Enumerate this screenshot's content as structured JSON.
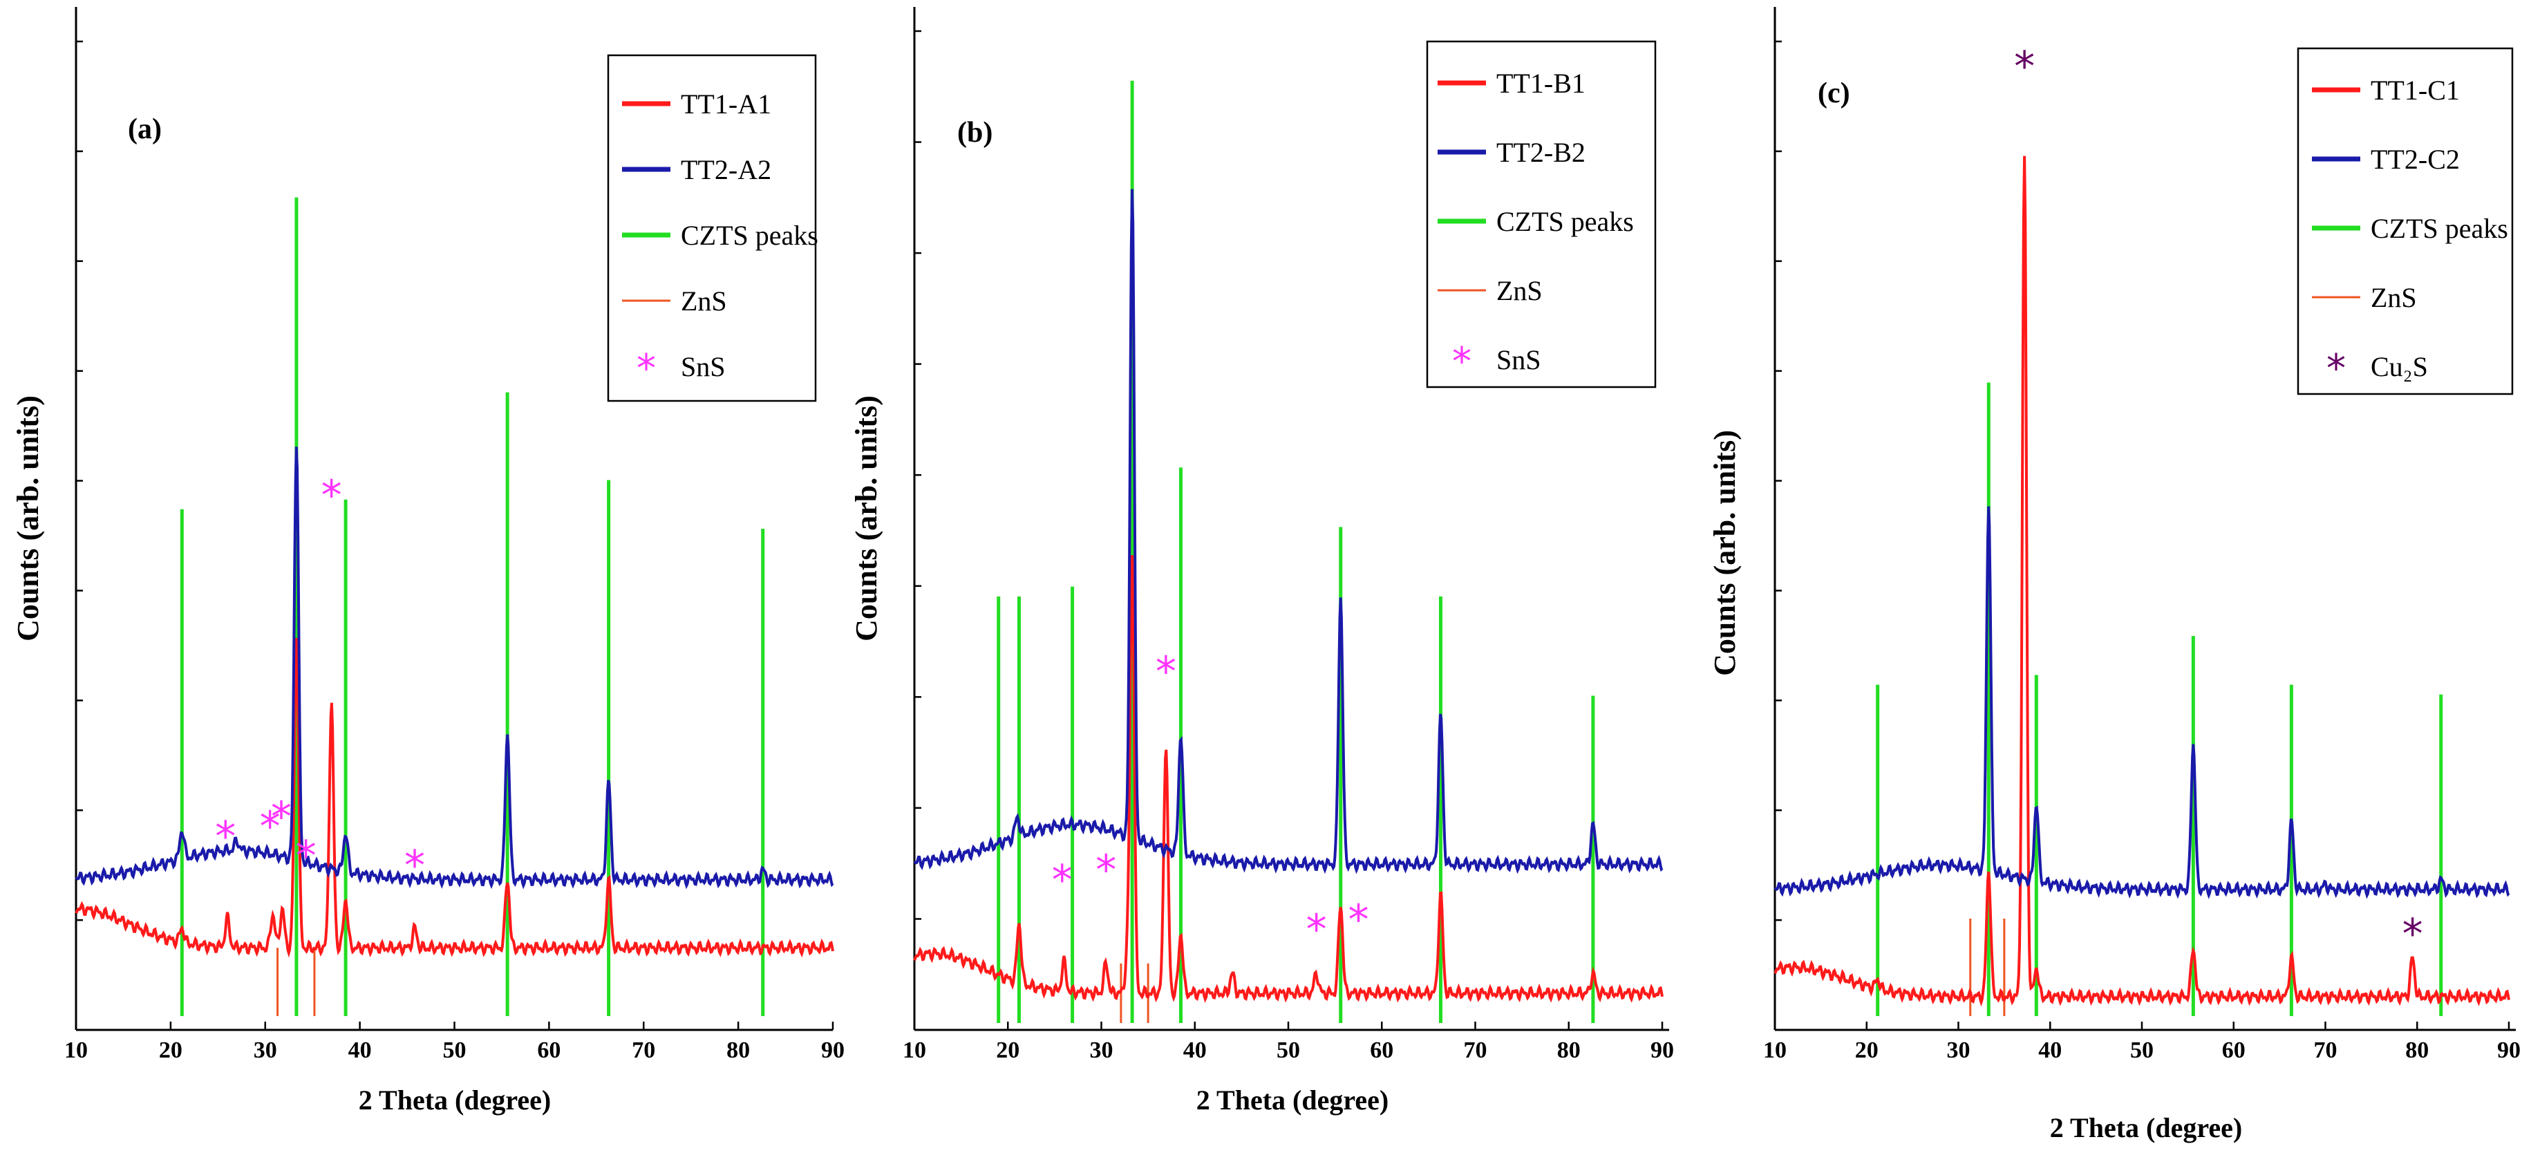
{
  "figure": {
    "xlabel": "2 Theta (degree)",
    "ylabel": "Counts (arb. units)"
  },
  "chart_data": [
    {
      "type": "line",
      "panel_label": "(a)",
      "title": "",
      "xlabel": "2 Theta (degree)",
      "ylabel": "Counts (arb. units)",
      "xlim": [
        10,
        90
      ],
      "ylim": [
        0,
        100
      ],
      "x_ticks": [
        "10",
        "20",
        "30",
        "40",
        "50",
        "60",
        "70",
        "80",
        "90"
      ],
      "legend": [
        {
          "label": "TT1-A1",
          "color": "#ff1a1a",
          "kind": "line"
        },
        {
          "label": "TT2-A2",
          "color": "#1a1aaa",
          "kind": "line"
        },
        {
          "label": "CZTS peaks",
          "color": "#22dd22",
          "kind": "line"
        },
        {
          "label": "ZnS",
          "color": "#ee5522",
          "kind": "line"
        },
        {
          "label": "SnS",
          "color": "#ff33ff",
          "kind": "star"
        }
      ],
      "series": [
        {
          "name": "TT1-A1",
          "color": "#ff1a1a",
          "baseline": 7,
          "hump": {
            "center": 10,
            "height": 4,
            "width": 8
          },
          "peaks": [
            [
              21.2,
              1.5
            ],
            [
              26.0,
              3
            ],
            [
              30.8,
              3.5
            ],
            [
              31.8,
              4
            ],
            [
              33.3,
              32
            ],
            [
              37.0,
              25
            ],
            [
              38.5,
              5
            ],
            [
              45.8,
              2
            ],
            [
              55.6,
              7
            ],
            [
              66.3,
              7
            ]
          ]
        },
        {
          "name": "TT2-A2",
          "color": "#1a1aaa",
          "baseline": 14,
          "hump": {
            "center": 27,
            "height": 3,
            "width": 10
          },
          "peaks": [
            [
              21.2,
              3
            ],
            [
              27.0,
              1
            ],
            [
              33.3,
              43
            ],
            [
              38.5,
              4
            ],
            [
              55.6,
              15
            ],
            [
              66.3,
              10
            ],
            [
              82.6,
              1
            ]
          ]
        }
      ],
      "reference_peaks": [
        {
          "name": "CZTS peaks",
          "color": "#22dd22",
          "positions": [
            21.2,
            33.3,
            38.5,
            55.6,
            66.3,
            82.6
          ],
          "heights": [
            52,
            84,
            53,
            64,
            55,
            50
          ]
        },
        {
          "name": "ZnS",
          "color": "#ee5522",
          "positions": [
            31.3,
            35.2
          ],
          "heights": [
            7,
            7
          ]
        }
      ],
      "markers": [
        {
          "name": "SnS",
          "symbol": "*",
          "color": "#ff33ff",
          "positions": [
            [
              25.8,
              17
            ],
            [
              30.5,
              18
            ],
            [
              31.7,
              19
            ],
            [
              34.3,
              15
            ],
            [
              37.0,
              52
            ],
            [
              45.8,
              14
            ]
          ]
        }
      ]
    },
    {
      "type": "line",
      "panel_label": "(b)",
      "title": "",
      "xlabel": "2 Theta (degree)",
      "ylabel": "Counts (arb. units)",
      "xlim": [
        10,
        90
      ],
      "ylim": [
        0,
        100
      ],
      "x_ticks": [
        "10",
        "20",
        "30",
        "40",
        "50",
        "60",
        "70",
        "80",
        "90"
      ],
      "legend": [
        {
          "label": "TT1-B1",
          "color": "#ff1a1a",
          "kind": "line"
        },
        {
          "label": "TT2-B2",
          "color": "#1a1aaa",
          "kind": "line"
        },
        {
          "label": "CZTS peaks",
          "color": "#22dd22",
          "kind": "line"
        },
        {
          "label": "ZnS",
          "color": "#ee5522",
          "kind": "line"
        },
        {
          "label": "SnS",
          "color": "#ff33ff",
          "kind": "star"
        }
      ],
      "series": [
        {
          "name": "TT1-B1",
          "color": "#ff1a1a",
          "baseline": 3,
          "hump": {
            "center": 12,
            "height": 4,
            "width": 8
          },
          "peaks": [
            [
              21.2,
              6
            ],
            [
              26.0,
              3
            ],
            [
              30.5,
              3
            ],
            [
              32.8,
              4
            ],
            [
              33.3,
              44
            ],
            [
              36.9,
              25
            ],
            [
              38.5,
              6
            ],
            [
              44.0,
              2
            ],
            [
              53.0,
              2
            ],
            [
              55.6,
              9
            ],
            [
              66.3,
              10
            ],
            [
              82.6,
              2
            ]
          ]
        },
        {
          "name": "TT2-B2",
          "color": "#1a1aaa",
          "baseline": 16,
          "hump": {
            "center": 27,
            "height": 4,
            "width": 10
          },
          "peaks": [
            [
              21.0,
              2
            ],
            [
              33.3,
              66
            ],
            [
              38.5,
              12
            ],
            [
              55.6,
              27
            ],
            [
              66.3,
              15
            ],
            [
              82.6,
              4
            ]
          ]
        }
      ],
      "reference_peaks": [
        {
          "name": "CZTS peaks",
          "color": "#22dd22",
          "positions": [
            19.0,
            21.2,
            26.9,
            33.3,
            38.5,
            55.6,
            66.3,
            82.6
          ],
          "heights": [
            43,
            43,
            44,
            95,
            56,
            50,
            43,
            33
          ]
        },
        {
          "name": "ZnS",
          "color": "#ee5522",
          "positions": [
            32.1,
            35.0
          ],
          "heights": [
            6,
            6
          ]
        }
      ],
      "markers": [
        {
          "name": "SnS",
          "symbol": "*",
          "color": "#ff33ff",
          "positions": [
            [
              25.8,
              13
            ],
            [
              30.5,
              14
            ],
            [
              36.9,
              34
            ],
            [
              53.0,
              8
            ],
            [
              57.5,
              9
            ]
          ]
        }
      ]
    },
    {
      "type": "line",
      "panel_label": "(c)",
      "title": "",
      "xlabel": "2 Theta (degree)",
      "ylabel": "Counts (arb. units)",
      "xlim": [
        10,
        90
      ],
      "ylim": [
        0,
        100
      ],
      "x_ticks": [
        "10",
        "20",
        "30",
        "40",
        "50",
        "60",
        "70",
        "80",
        "90"
      ],
      "legend": [
        {
          "label": "TT1-C1",
          "color": "#ff1a1a",
          "kind": "line"
        },
        {
          "label": "TT2-C2",
          "color": "#1a1aaa",
          "kind": "line"
        },
        {
          "label": "CZTS peaks",
          "color": "#22dd22",
          "kind": "line"
        },
        {
          "label": "ZnS",
          "color": "#ee5522",
          "kind": "line"
        },
        {
          "label": "Cu₂S",
          "color": "#660066",
          "kind": "star"
        }
      ],
      "series": [
        {
          "name": "TT1-C1",
          "color": "#ff1a1a",
          "baseline": 2,
          "hump": {
            "center": 12,
            "height": 3,
            "width": 8
          },
          "peaks": [
            [
              21.2,
              1
            ],
            [
              33.3,
              13
            ],
            [
              37.2,
              86
            ],
            [
              38.5,
              3
            ],
            [
              55.6,
              5
            ],
            [
              66.3,
              4
            ],
            [
              79.5,
              4
            ]
          ]
        },
        {
          "name": "TT2-C2",
          "color": "#1a1aaa",
          "baseline": 13,
          "hump": {
            "center": 28,
            "height": 2.5,
            "width": 10
          },
          "peaks": [
            [
              33.3,
              38
            ],
            [
              38.5,
              8
            ],
            [
              55.6,
              15
            ],
            [
              66.3,
              7
            ],
            [
              70.0,
              0.5
            ],
            [
              82.6,
              1
            ]
          ]
        }
      ],
      "reference_peaks": [
        {
          "name": "CZTS peaks",
          "color": "#22dd22",
          "positions": [
            21.2,
            33.3,
            38.5,
            55.6,
            66.3,
            82.6
          ],
          "heights": [
            34,
            65,
            35,
            39,
            34,
            33
          ]
        },
        {
          "name": "ZnS",
          "color": "#ee5522",
          "positions": [
            31.3,
            35.0
          ],
          "heights": [
            10,
            10
          ]
        }
      ],
      "markers": [
        {
          "name": "Cu₂S",
          "symbol": "*",
          "color": "#660066",
          "positions": [
            [
              37.2,
              96
            ],
            [
              79.5,
              7
            ]
          ]
        }
      ]
    }
  ]
}
